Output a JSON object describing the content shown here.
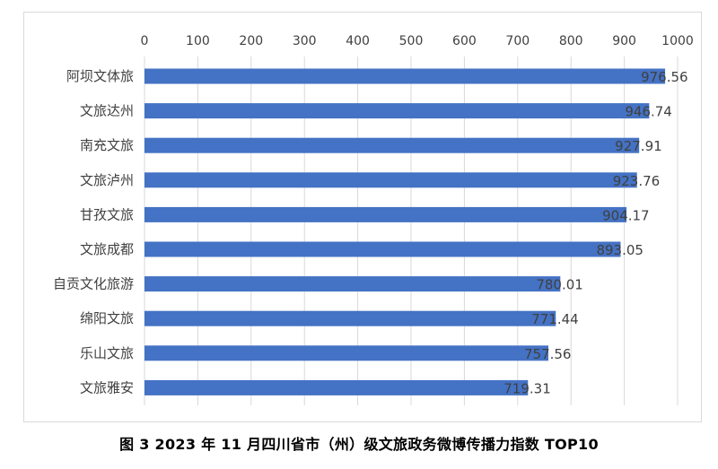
{
  "caption": "图 3   2023 年 11 月四川省市（州）级文旅政务微博传播力指数 TOP10",
  "chart_data": {
    "type": "bar",
    "orientation": "horizontal",
    "title": "",
    "xlabel": "",
    "ylabel": "",
    "xlim": [
      0,
      1000
    ],
    "x_ticks": [
      0,
      100,
      200,
      300,
      400,
      500,
      600,
      700,
      800,
      900,
      1000
    ],
    "x_axis_position": "top",
    "grid": true,
    "legend": "none",
    "bar_color": "#4472C4",
    "categories": [
      "阿坝文体旅",
      "文旅达州",
      "南充文旅",
      "文旅泸州",
      "甘孜文旅",
      "文旅成都",
      "自贡文化旅游",
      "绵阳文旅",
      "乐山文旅",
      "文旅雅安"
    ],
    "values": [
      976.56,
      946.74,
      927.91,
      923.76,
      904.17,
      893.05,
      780.01,
      771.44,
      757.56,
      719.31
    ],
    "value_labels": [
      "976.56",
      "946.74",
      "927.91",
      "923.76",
      "904.17",
      "893.05",
      "780.01",
      "771.44",
      "757.56",
      "719.31"
    ]
  }
}
